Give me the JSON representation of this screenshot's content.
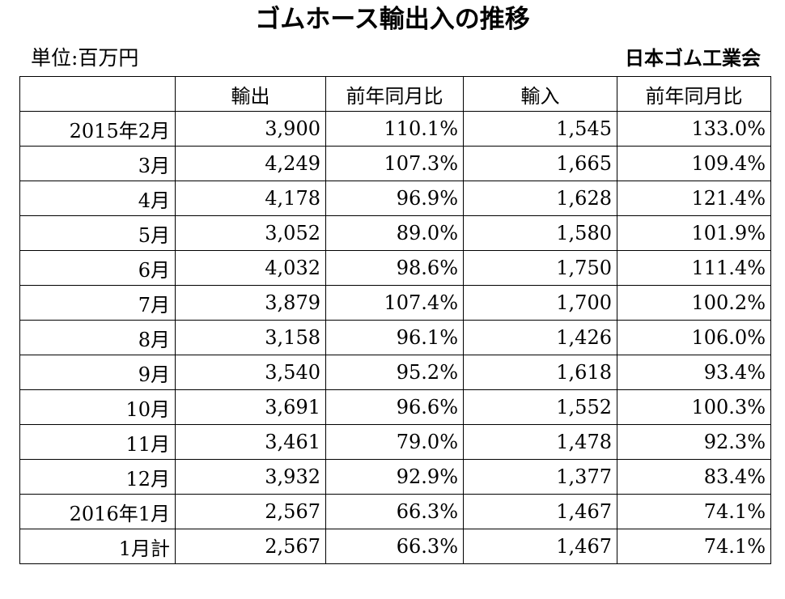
{
  "title": "ゴムホース輸出入の推移",
  "unit": "単位:百万円",
  "source": "日本ゴム工業会",
  "table": {
    "headers": [
      "",
      "輸出",
      "前年同月比",
      "輸入",
      "前年同月比"
    ],
    "rows": [
      {
        "period": "2015年2月",
        "export": "3,900",
        "export_yoy": "110.1%",
        "import": "1,545",
        "import_yoy": "133.0%"
      },
      {
        "period": "3月",
        "export": "4,249",
        "export_yoy": "107.3%",
        "import": "1,665",
        "import_yoy": "109.4%"
      },
      {
        "period": "4月",
        "export": "4,178",
        "export_yoy": "96.9%",
        "import": "1,628",
        "import_yoy": "121.4%"
      },
      {
        "period": "5月",
        "export": "3,052",
        "export_yoy": "89.0%",
        "import": "1,580",
        "import_yoy": "101.9%"
      },
      {
        "period": "6月",
        "export": "4,032",
        "export_yoy": "98.6%",
        "import": "1,750",
        "import_yoy": "111.4%"
      },
      {
        "period": "7月",
        "export": "3,879",
        "export_yoy": "107.4%",
        "import": "1,700",
        "import_yoy": "100.2%"
      },
      {
        "period": "8月",
        "export": "3,158",
        "export_yoy": "96.1%",
        "import": "1,426",
        "import_yoy": "106.0%"
      },
      {
        "period": "9月",
        "export": "3,540",
        "export_yoy": "95.2%",
        "import": "1,618",
        "import_yoy": "93.4%"
      },
      {
        "period": "10月",
        "export": "3,691",
        "export_yoy": "96.6%",
        "import": "1,552",
        "import_yoy": "100.3%"
      },
      {
        "period": "11月",
        "export": "3,461",
        "export_yoy": "79.0%",
        "import": "1,478",
        "import_yoy": "92.3%"
      },
      {
        "period": "12月",
        "export": "3,932",
        "export_yoy": "92.9%",
        "import": "1,377",
        "import_yoy": "83.4%"
      },
      {
        "period": "2016年1月",
        "export": "2,567",
        "export_yoy": "66.3%",
        "import": "1,467",
        "import_yoy": "74.1%"
      },
      {
        "period": "1月計",
        "export": "2,567",
        "export_yoy": "66.3%",
        "import": "1,467",
        "import_yoy": "74.1%"
      }
    ]
  }
}
